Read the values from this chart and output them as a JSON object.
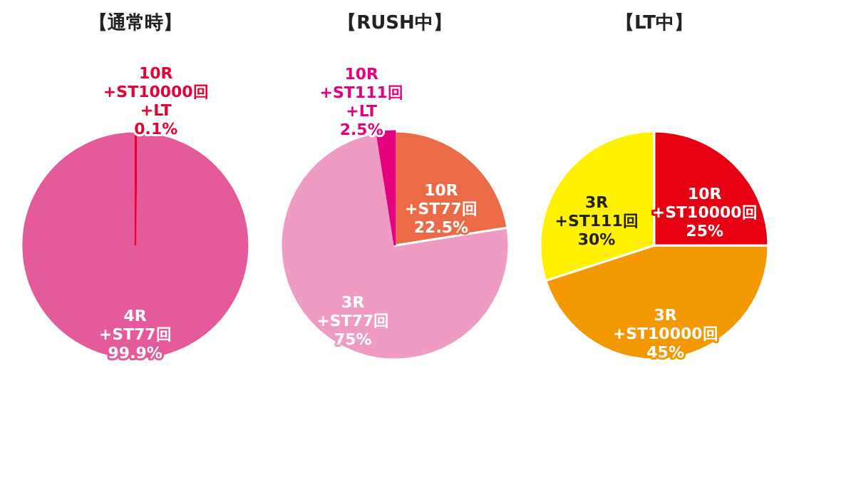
{
  "chart_data": [
    {
      "type": "pie",
      "title": "【通常時】",
      "categories": [
        "10R\n+ST10000回\n+LT",
        "4R\n+ST77回"
      ],
      "values": [
        0.1,
        99.9
      ],
      "value_labels": [
        "0.1%",
        "99.9%"
      ],
      "colors": [
        "#e60033",
        "#e45a9a"
      ]
    },
    {
      "type": "pie",
      "title": "【RUSH中】",
      "categories": [
        "10R\n+ST77回",
        "3R\n+ST77回",
        "10R\n+ST111回\n+LT"
      ],
      "values": [
        22.5,
        75,
        2.5
      ],
      "value_labels": [
        "22.5%",
        "75%",
        "2.5%"
      ],
      "colors": [
        "#ec6b47",
        "#f09bc4",
        "#e4007f"
      ]
    },
    {
      "type": "pie",
      "title": "【LT中】",
      "categories": [
        "10R\n+ST10000回",
        "3R\n+ST10000回",
        "3R\n+ST111回"
      ],
      "values": [
        25,
        45,
        30
      ],
      "value_labels": [
        "25%",
        "45%",
        "30%"
      ],
      "colors": [
        "#e60012",
        "#f39800",
        "#fff100"
      ]
    }
  ]
}
